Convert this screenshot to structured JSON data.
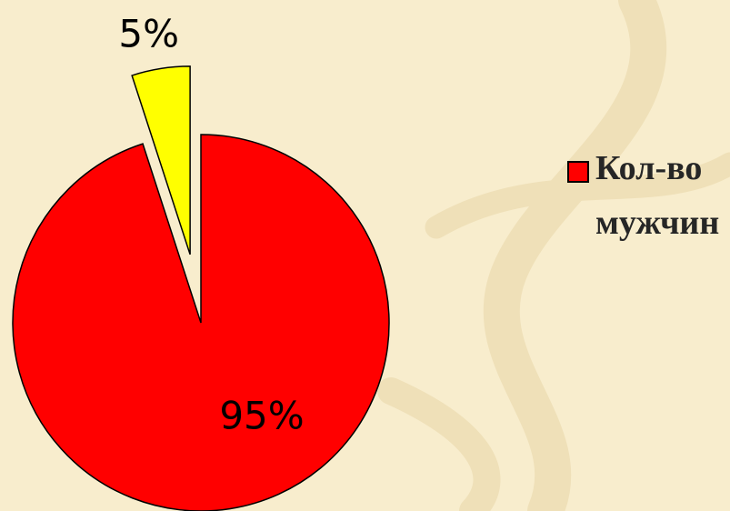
{
  "chart_data": {
    "type": "pie",
    "categories": [
      "Кол-во мужчин",
      null
    ],
    "values": [
      95,
      5
    ],
    "value_labels": [
      "95%",
      "5%"
    ],
    "colors": [
      "#ff0000",
      "#ffff00"
    ],
    "legend": "right"
  }
}
